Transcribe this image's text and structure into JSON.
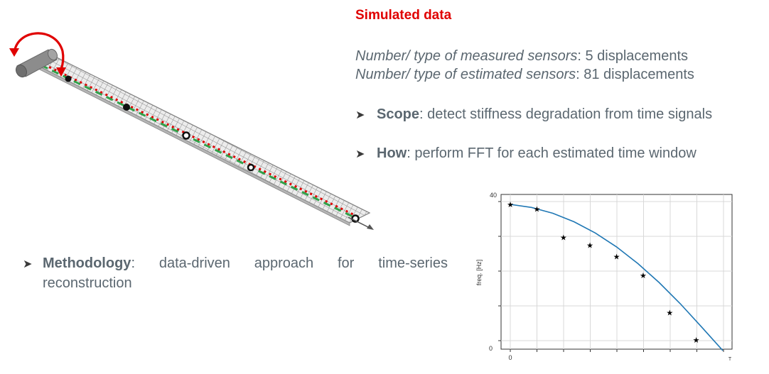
{
  "title": "Simulated data",
  "sensors": {
    "measured_label": "Number/ type of measured sensors",
    "measured_value": ": 5 displacements",
    "estimated_label": "Number/ type of estimated sensors",
    "estimated_value": ": 81 displacements"
  },
  "bullets": {
    "scope_key": "Scope",
    "scope_text": ": detect stiffness degradation from time signals",
    "how_key": "How",
    "how_text": ": perform FFT for each estimated time window",
    "method_key": "Methodology",
    "method_words": [
      ":",
      "data-driven",
      "approach",
      "for",
      "time-series"
    ],
    "method_line2": "reconstruction"
  },
  "colors": {
    "title": "#e00000",
    "text": "#5b6770",
    "fit_line": "#1f77b4",
    "rotation_arrow": "#e00000",
    "measured_path": "#1f9a3a",
    "estimated_path": "#e00000"
  },
  "icons": {
    "bullet": "arrowhead-bullet-icon",
    "rotation": "rotation-arrow-icon"
  },
  "chart_data": {
    "type": "scatter",
    "xlabel": "",
    "ylabel": "freq. [Hz]",
    "x_tick_labels": [
      "0",
      "T"
    ],
    "y_tick_labels": [
      "40",
      "0"
    ],
    "ylim": [
      0,
      40
    ],
    "grid": true,
    "series": [
      {
        "marker": "star",
        "x": [
          0,
          0.125,
          0.25,
          0.375,
          0.5,
          0.625,
          0.75,
          0.875
        ],
        "y": [
          39.0,
          37.8,
          30.5,
          28.4,
          25.5,
          20.6,
          11.0,
          3.9
        ]
      },
      {
        "marker": "line",
        "x": [
          0,
          0.1,
          0.2,
          0.3,
          0.4,
          0.5,
          0.6,
          0.7,
          0.8,
          0.9,
          1.0
        ],
        "y": [
          39.0,
          38.2,
          36.7,
          34.5,
          31.6,
          28.0,
          23.7,
          18.8,
          13.3,
          7.3,
          1.2
        ]
      }
    ]
  }
}
